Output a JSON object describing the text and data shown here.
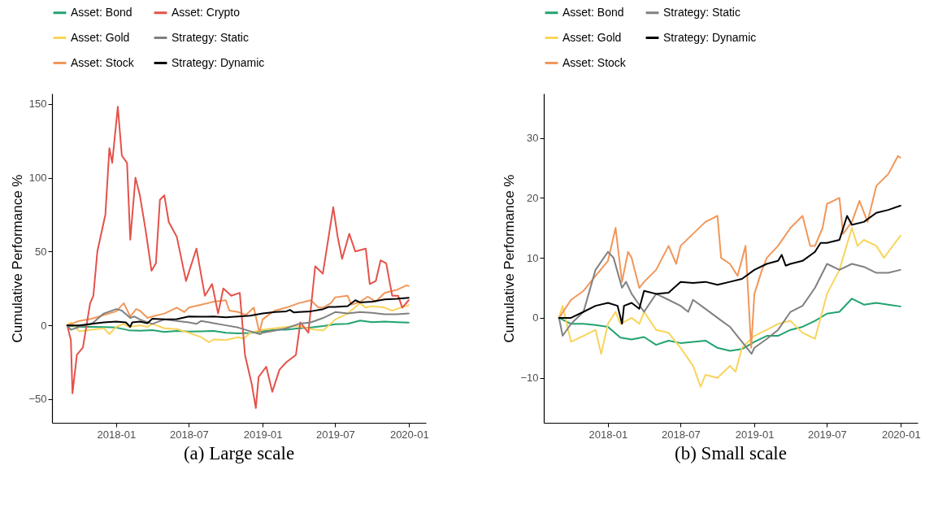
{
  "chart_data": [
    {
      "type": "line",
      "title": "(a) Large scale",
      "ylabel": "Cumulative Performance %",
      "legend": "top",
      "grid": false,
      "line_style": "solid",
      "xlim": [
        "2017-07-25",
        "2020-02-12"
      ],
      "xticks": [
        "2018-01",
        "2018-07",
        "2019-01",
        "2019-07",
        "2020-01"
      ],
      "ylim": [
        -66,
        157
      ],
      "yticks": [
        -50,
        0,
        50,
        100,
        150
      ],
      "series": [
        {
          "name": "Asset: Bond",
          "color": "#21a36f",
          "x": [
            "2017-09-01",
            "2017-10-01",
            "2017-11-01",
            "2017-12-01",
            "2018-01-01",
            "2018-02-01",
            "2018-03-01",
            "2018-04-01",
            "2018-05-01",
            "2018-06-01",
            "2018-07-01",
            "2018-08-01",
            "2018-09-01",
            "2018-10-01",
            "2018-11-01",
            "2018-12-01",
            "2019-01-01",
            "2019-02-01",
            "2019-03-01",
            "2019-04-01",
            "2019-05-01",
            "2019-06-01",
            "2019-07-01",
            "2019-08-01",
            "2019-09-01",
            "2019-10-01",
            "2019-11-01",
            "2019-12-01",
            "2019-12-31"
          ],
          "values": [
            0,
            -1,
            -1,
            -1.2,
            -1.5,
            -3.3,
            -3.6,
            -3.2,
            -4.5,
            -3.8,
            -4.2,
            -4,
            -3.8,
            -5,
            -5.5,
            -5.2,
            -4,
            -3,
            -3,
            -2,
            -1.5,
            -0.5,
            0.7,
            1,
            3.2,
            2.2,
            2.5,
            2.2,
            1.9
          ]
        },
        {
          "name": "Asset: Gold",
          "color": "#f9d45c",
          "x": [
            "2017-09-01",
            "2017-09-10",
            "2017-10-01",
            "2017-11-01",
            "2017-12-01",
            "2017-12-15",
            "2018-01-01",
            "2018-01-20",
            "2018-02-01",
            "2018-03-01",
            "2018-03-20",
            "2018-04-01",
            "2018-05-01",
            "2018-06-01",
            "2018-07-01",
            "2018-08-01",
            "2018-08-20",
            "2018-09-01",
            "2018-10-01",
            "2018-11-01",
            "2018-11-15",
            "2018-12-01",
            "2019-01-01",
            "2019-02-01",
            "2019-03-01",
            "2019-04-01",
            "2019-05-01",
            "2019-06-01",
            "2019-07-01",
            "2019-08-01",
            "2019-09-01",
            "2019-09-15",
            "2019-10-01",
            "2019-11-01",
            "2019-11-20",
            "2019-12-01",
            "2019-12-31"
          ],
          "values": [
            0,
            2,
            -4,
            -3,
            -2,
            -6,
            -1,
            1,
            -1,
            0,
            -1,
            1,
            -2,
            -2.5,
            -5,
            -8,
            -11.5,
            -9.5,
            -10,
            -8,
            -9,
            -5,
            -3,
            -2,
            -1,
            -0.5,
            -2.5,
            -3.5,
            4,
            8,
            15,
            12,
            13,
            12,
            10,
            11,
            13.7
          ]
        },
        {
          "name": "Asset: Stock",
          "color": "#f0975a",
          "x": [
            "2017-09-01",
            "2017-10-01",
            "2017-11-01",
            "2017-12-01",
            "2018-01-01",
            "2018-01-20",
            "2018-02-05",
            "2018-02-20",
            "2018-03-01",
            "2018-03-20",
            "2018-04-01",
            "2018-05-01",
            "2018-06-01",
            "2018-06-20",
            "2018-07-01",
            "2018-08-01",
            "2018-09-01",
            "2018-10-01",
            "2018-10-10",
            "2018-11-01",
            "2018-11-20",
            "2018-12-10",
            "2018-12-24",
            "2019-01-01",
            "2019-01-20",
            "2019-02-01",
            "2019-03-01",
            "2019-04-01",
            "2019-05-01",
            "2019-05-20",
            "2019-06-01",
            "2019-06-20",
            "2019-07-01",
            "2019-08-01",
            "2019-08-10",
            "2019-09-01",
            "2019-09-20",
            "2019-10-10",
            "2019-11-01",
            "2019-12-01",
            "2019-12-25",
            "2019-12-31"
          ],
          "values": [
            0,
            3,
            4.5,
            7,
            9.5,
            15,
            6,
            11,
            10,
            5,
            6,
            8,
            12,
            9,
            12,
            14,
            16,
            17,
            10,
            9,
            7,
            12,
            -5,
            4,
            8,
            10,
            12,
            15,
            17,
            12,
            12,
            15,
            19,
            20,
            14,
            16,
            19.5,
            16,
            22,
            24,
            27,
            26.7
          ]
        },
        {
          "name": "Asset: Crypto",
          "color": "#e4524a",
          "x": [
            "2017-09-01",
            "2017-09-10",
            "2017-09-14",
            "2017-09-25",
            "2017-10-10",
            "2017-10-28",
            "2017-11-05",
            "2017-11-15",
            "2017-12-05",
            "2017-12-15",
            "2017-12-22",
            "2018-01-05",
            "2018-01-15",
            "2018-01-28",
            "2018-02-05",
            "2018-02-18",
            "2018-03-01",
            "2018-03-15",
            "2018-03-30",
            "2018-04-10",
            "2018-04-20",
            "2018-05-01",
            "2018-05-12",
            "2018-06-01",
            "2018-06-24",
            "2018-07-20",
            "2018-08-10",
            "2018-08-28",
            "2018-09-12",
            "2018-09-25",
            "2018-10-15",
            "2018-11-05",
            "2018-11-18",
            "2018-12-05",
            "2018-12-15",
            "2018-12-22",
            "2019-01-10",
            "2019-01-25",
            "2019-02-12",
            "2019-03-01",
            "2019-03-25",
            "2019-04-05",
            "2019-04-25",
            "2019-05-12",
            "2019-05-31",
            "2019-06-26",
            "2019-07-07",
            "2019-07-18",
            "2019-08-05",
            "2019-08-20",
            "2019-09-15",
            "2019-09-25",
            "2019-10-10",
            "2019-10-22",
            "2019-11-05",
            "2019-11-20",
            "2019-12-05",
            "2019-12-15",
            "2019-12-31"
          ],
          "values": [
            0,
            -10,
            -46,
            -20,
            -15,
            15,
            20,
            50,
            75,
            120,
            110,
            148,
            115,
            110,
            58,
            100,
            88,
            65,
            37,
            42,
            85,
            88,
            70,
            60,
            30,
            52,
            20,
            28,
            8,
            25,
            20,
            22,
            -20,
            -40,
            -56,
            -35,
            -28,
            -45,
            -30,
            -25,
            -20,
            2,
            -5,
            40,
            35,
            80,
            60,
            45,
            62,
            50,
            52,
            28,
            30,
            44,
            42,
            20,
            20,
            12,
            17
          ]
        },
        {
          "name": "Strategy: Static",
          "color": "#808080",
          "x": [
            "2017-09-01",
            "2017-09-10",
            "2017-10-01",
            "2017-11-01",
            "2017-12-01",
            "2018-01-01",
            "2018-01-15",
            "2018-02-05",
            "2018-02-15",
            "2018-03-01",
            "2018-04-01",
            "2018-05-01",
            "2018-06-01",
            "2018-07-01",
            "2018-07-20",
            "2018-08-01",
            "2018-09-01",
            "2018-10-01",
            "2018-11-01",
            "2018-12-01",
            "2018-12-25",
            "2019-01-01",
            "2019-02-01",
            "2019-03-01",
            "2019-04-01",
            "2019-05-01",
            "2019-06-01",
            "2019-07-01",
            "2019-08-01",
            "2019-09-01",
            "2019-10-01",
            "2019-11-01",
            "2019-12-01",
            "2019-12-31"
          ],
          "values": [
            0,
            -3,
            -1,
            1,
            8,
            11,
            10,
            5,
            6,
            4,
            1,
            4,
            3,
            2,
            1,
            3,
            1.5,
            0,
            -1.5,
            -4,
            -6,
            -5,
            -3.5,
            -2,
            1,
            2,
            5,
            9,
            8,
            9,
            8.5,
            7.5,
            7.5,
            8
          ]
        },
        {
          "name": "Strategy: Dynamic",
          "color": "#000000",
          "x": [
            "2017-09-01",
            "2017-10-01",
            "2017-11-01",
            "2017-12-01",
            "2018-01-01",
            "2018-01-25",
            "2018-02-05",
            "2018-02-10",
            "2018-03-01",
            "2018-03-20",
            "2018-04-01",
            "2018-05-01",
            "2018-06-01",
            "2018-07-01",
            "2018-08-01",
            "2018-09-01",
            "2018-10-01",
            "2018-11-01",
            "2018-12-01",
            "2019-01-01",
            "2019-02-01",
            "2019-03-01",
            "2019-03-10",
            "2019-03-20",
            "2019-04-01",
            "2019-05-01",
            "2019-06-01",
            "2019-06-15",
            "2019-07-01",
            "2019-08-01",
            "2019-08-20",
            "2019-09-01",
            "2019-10-01",
            "2019-11-01",
            "2019-12-01",
            "2019-12-31"
          ],
          "values": [
            0,
            0,
            1,
            2,
            2.5,
            2,
            -1,
            2,
            2.5,
            1.5,
            4.5,
            4,
            4.2,
            6,
            5.8,
            6,
            5.5,
            6,
            6.5,
            8,
            9,
            9.5,
            10.5,
            8.7,
            9,
            9.5,
            11,
            12.5,
            12.5,
            13,
            17,
            15.5,
            16,
            17.5,
            18,
            18.7
          ]
        }
      ]
    },
    {
      "type": "line",
      "title": "(b) Small scale",
      "ylabel": "Cumulative Performance %",
      "legend": "top",
      "grid": false,
      "line_style": "solid",
      "xlim": [
        "2017-07-25",
        "2020-02-12"
      ],
      "xticks": [
        "2018-01",
        "2018-07",
        "2019-01",
        "2019-07",
        "2020-01"
      ],
      "ylim": [
        -17.5,
        37.4
      ],
      "yticks": [
        -10,
        0,
        10,
        20,
        30
      ],
      "series": [
        {
          "name": "Asset: Bond",
          "color": "#21a36f",
          "x": [
            "2017-09-01",
            "2017-10-01",
            "2017-11-01",
            "2017-12-01",
            "2018-01-01",
            "2018-02-01",
            "2018-03-01",
            "2018-04-01",
            "2018-05-01",
            "2018-06-01",
            "2018-07-01",
            "2018-08-01",
            "2018-09-01",
            "2018-10-01",
            "2018-11-01",
            "2018-12-01",
            "2019-01-01",
            "2019-02-01",
            "2019-03-01",
            "2019-04-01",
            "2019-05-01",
            "2019-06-01",
            "2019-07-01",
            "2019-08-01",
            "2019-09-01",
            "2019-10-01",
            "2019-11-01",
            "2019-12-01",
            "2019-12-31"
          ],
          "values": [
            0,
            -1,
            -1,
            -1.2,
            -1.5,
            -3.3,
            -3.6,
            -3.2,
            -4.5,
            -3.8,
            -4.2,
            -4,
            -3.8,
            -5,
            -5.5,
            -5.2,
            -4,
            -3,
            -3,
            -2,
            -1.5,
            -0.5,
            0.7,
            1,
            3.2,
            2.2,
            2.5,
            2.2,
            1.9
          ]
        },
        {
          "name": "Asset: Gold",
          "color": "#f9d45c",
          "x": [
            "2017-09-01",
            "2017-09-10",
            "2017-10-01",
            "2017-11-01",
            "2017-12-01",
            "2017-12-15",
            "2018-01-01",
            "2018-01-20",
            "2018-02-01",
            "2018-03-01",
            "2018-03-20",
            "2018-04-01",
            "2018-05-01",
            "2018-06-01",
            "2018-07-01",
            "2018-08-01",
            "2018-08-20",
            "2018-09-01",
            "2018-10-01",
            "2018-11-01",
            "2018-11-15",
            "2018-12-01",
            "2019-01-01",
            "2019-02-01",
            "2019-03-01",
            "2019-04-01",
            "2019-05-01",
            "2019-06-01",
            "2019-07-01",
            "2019-08-01",
            "2019-09-01",
            "2019-09-15",
            "2019-10-01",
            "2019-11-01",
            "2019-11-20",
            "2019-12-01",
            "2019-12-31"
          ],
          "values": [
            0,
            2,
            -4,
            -3,
            -2,
            -6,
            -1,
            1,
            -1,
            0,
            -1,
            1,
            -2,
            -2.5,
            -5,
            -8,
            -11.5,
            -9.5,
            -10,
            -8,
            -9,
            -5,
            -3,
            -2,
            -1,
            -0.5,
            -2.5,
            -3.5,
            4,
            8,
            15,
            12,
            13,
            12,
            10,
            11,
            13.7
          ]
        },
        {
          "name": "Asset: Stock",
          "color": "#f0975a",
          "x": [
            "2017-09-01",
            "2017-10-01",
            "2017-11-01",
            "2017-12-01",
            "2018-01-01",
            "2018-01-20",
            "2018-02-05",
            "2018-02-20",
            "2018-03-01",
            "2018-03-20",
            "2018-04-01",
            "2018-05-01",
            "2018-06-01",
            "2018-06-20",
            "2018-07-01",
            "2018-08-01",
            "2018-09-01",
            "2018-10-01",
            "2018-10-10",
            "2018-11-01",
            "2018-11-20",
            "2018-12-10",
            "2018-12-24",
            "2019-01-01",
            "2019-01-20",
            "2019-02-01",
            "2019-03-01",
            "2019-04-01",
            "2019-05-01",
            "2019-05-20",
            "2019-06-01",
            "2019-06-20",
            "2019-07-01",
            "2019-08-01",
            "2019-08-10",
            "2019-09-01",
            "2019-09-20",
            "2019-10-10",
            "2019-11-01",
            "2019-12-01",
            "2019-12-25",
            "2019-12-31"
          ],
          "values": [
            0,
            3,
            4.5,
            7,
            9.5,
            15,
            6,
            11,
            10,
            5,
            6,
            8,
            12,
            9,
            12,
            14,
            16,
            17,
            10,
            9,
            7,
            12,
            -5,
            4,
            8,
            10,
            12,
            15,
            17,
            12,
            12,
            15,
            19,
            20,
            14,
            16,
            19.5,
            16,
            22,
            24,
            27,
            26.7
          ]
        },
        {
          "name": "Strategy: Static",
          "color": "#808080",
          "x": [
            "2017-09-01",
            "2017-09-10",
            "2017-10-01",
            "2017-11-01",
            "2017-12-01",
            "2018-01-01",
            "2018-01-15",
            "2018-02-05",
            "2018-02-15",
            "2018-03-01",
            "2018-04-01",
            "2018-05-01",
            "2018-06-01",
            "2018-07-01",
            "2018-07-20",
            "2018-08-01",
            "2018-09-01",
            "2018-10-01",
            "2018-11-01",
            "2018-12-01",
            "2018-12-25",
            "2019-01-01",
            "2019-02-01",
            "2019-03-01",
            "2019-04-01",
            "2019-05-01",
            "2019-06-01",
            "2019-07-01",
            "2019-08-01",
            "2019-09-01",
            "2019-10-01",
            "2019-11-01",
            "2019-12-01",
            "2019-12-31"
          ],
          "values": [
            0,
            -3,
            -1,
            1,
            8,
            11,
            10,
            5,
            6,
            4,
            1,
            4,
            3,
            2,
            1,
            3,
            1.5,
            0,
            -1.5,
            -4,
            -6,
            -5,
            -3.5,
            -2,
            1,
            2,
            5,
            9,
            8,
            9,
            8.5,
            7.5,
            7.5,
            8
          ]
        },
        {
          "name": "Strategy: Dynamic",
          "color": "#000000",
          "x": [
            "2017-09-01",
            "2017-10-01",
            "2017-11-01",
            "2017-12-01",
            "2018-01-01",
            "2018-01-25",
            "2018-02-05",
            "2018-02-10",
            "2018-03-01",
            "2018-03-20",
            "2018-04-01",
            "2018-05-01",
            "2018-06-01",
            "2018-07-01",
            "2018-08-01",
            "2018-09-01",
            "2018-10-01",
            "2018-11-01",
            "2018-12-01",
            "2019-01-01",
            "2019-02-01",
            "2019-03-01",
            "2019-03-10",
            "2019-03-20",
            "2019-04-01",
            "2019-05-01",
            "2019-06-01",
            "2019-06-15",
            "2019-07-01",
            "2019-08-01",
            "2019-08-20",
            "2019-09-01",
            "2019-10-01",
            "2019-11-01",
            "2019-12-01",
            "2019-12-31"
          ],
          "values": [
            0,
            0,
            1,
            2,
            2.5,
            2,
            -1,
            2,
            2.5,
            1.5,
            4.5,
            4,
            4.2,
            6,
            5.8,
            6,
            5.5,
            6,
            6.5,
            8,
            9,
            9.5,
            10.5,
            8.7,
            9,
            9.5,
            11,
            12.5,
            12.5,
            13,
            17,
            15.5,
            16,
            17.5,
            18,
            18.7
          ]
        }
      ]
    }
  ]
}
